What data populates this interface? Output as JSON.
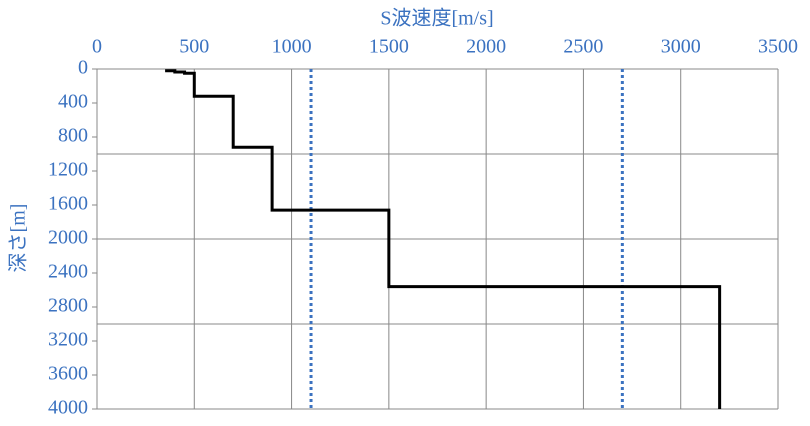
{
  "chart_data": {
    "type": "line",
    "x_label": "S波速度[m/s]",
    "y_label": "深さ[m]",
    "xlim": [
      0,
      3500
    ],
    "xticks": [
      0,
      500,
      1000,
      1500,
      2000,
      2500,
      3000,
      3500
    ],
    "ylim": [
      0,
      4000
    ],
    "yticks": [
      0,
      400,
      800,
      1200,
      1600,
      2000,
      2400,
      2800,
      3200,
      3600,
      4000
    ],
    "y_reversed": true,
    "x_axis_position": "top",
    "ygrid": [
      1000,
      2000,
      3000,
      4000
    ],
    "series": [
      {
        "color": "#000000",
        "x": [
          350,
          400,
          400,
          450,
          450,
          500,
          500,
          700,
          700,
          900,
          900,
          1500,
          1500,
          3200,
          3200
        ],
        "values": [
          20,
          20,
          35,
          35,
          50,
          50,
          320,
          320,
          920,
          920,
          1660,
          1660,
          2560,
          2560,
          4000
        ]
      }
    ],
    "reference_lines": {
      "color": "#3b72c0",
      "x": [
        1100,
        2700
      ]
    }
  }
}
